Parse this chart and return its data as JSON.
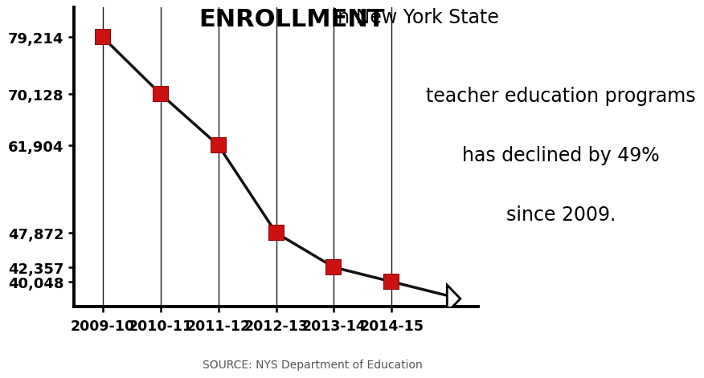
{
  "years": [
    "2009-10",
    "2010-11",
    "2011-12",
    "2012-13",
    "2013-14",
    "2014-15"
  ],
  "values": [
    79214,
    70128,
    61904,
    47872,
    42357,
    40048
  ],
  "ytick_labels": [
    "79,214",
    "70,128",
    "61,904",
    "47,872",
    "42,357",
    "40,048"
  ],
  "ytick_values": [
    79214,
    70128,
    61904,
    47872,
    42357,
    40048
  ],
  "marker_color": "#cc1111",
  "line_color": "#111111",
  "bg_color": "#ffffff",
  "enrollment_bold": "ENROLLMENT",
  "line1_rest": " in New York State",
  "line2": "teacher education programs",
  "line3": "has declined by 49%",
  "line4": "since 2009.",
  "source_text": "SOURCE: NYS Department of Education",
  "ylim_min": 36000,
  "ylim_max": 84000,
  "xlim_min": -0.5,
  "xlim_max": 6.5
}
